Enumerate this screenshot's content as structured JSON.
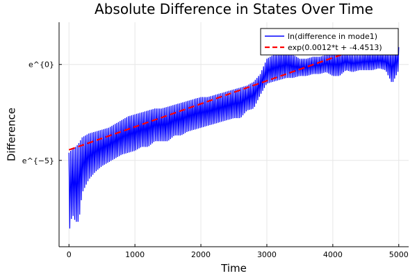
{
  "chart_data": {
    "type": "line",
    "title": "Absolute Difference in States Over Time",
    "xlabel": "Time",
    "ylabel": "Difference",
    "xlim": [
      -150,
      5150
    ],
    "ylim": [
      -9.5,
      2.2
    ],
    "xticks": [
      0,
      1000,
      2000,
      3000,
      4000,
      5000
    ],
    "xtick_labels": [
      "0",
      "1000",
      "2000",
      "3000",
      "4000",
      "5000"
    ],
    "yticks": [
      0,
      -5
    ],
    "ytick_labels": [
      "e^{0}",
      "e^{−5}"
    ],
    "grid": true,
    "legend_position": "top-right",
    "series": [
      {
        "name": "ln(difference in mode1)",
        "color": "#0000ff",
        "style": "solid",
        "envelope_upper": [
          [
            0,
            -4.6
          ],
          [
            50,
            -4.4
          ],
          [
            100,
            -4.3
          ],
          [
            150,
            -4.1
          ],
          [
            200,
            -3.8
          ],
          [
            300,
            -3.6
          ],
          [
            400,
            -3.5
          ],
          [
            500,
            -3.4
          ],
          [
            600,
            -3.3
          ],
          [
            700,
            -3.1
          ],
          [
            800,
            -2.9
          ],
          [
            900,
            -2.7
          ],
          [
            1000,
            -2.6
          ],
          [
            1100,
            -2.5
          ],
          [
            1200,
            -2.4
          ],
          [
            1300,
            -2.3
          ],
          [
            1400,
            -2.3
          ],
          [
            1500,
            -2.2
          ],
          [
            1600,
            -2.1
          ],
          [
            1700,
            -2.0
          ],
          [
            1800,
            -1.9
          ],
          [
            1900,
            -1.8
          ],
          [
            2000,
            -1.7
          ],
          [
            2100,
            -1.7
          ],
          [
            2200,
            -1.6
          ],
          [
            2300,
            -1.5
          ],
          [
            2400,
            -1.4
          ],
          [
            2500,
            -1.3
          ],
          [
            2600,
            -1.2
          ],
          [
            2700,
            -1.1
          ],
          [
            2800,
            -0.9
          ],
          [
            2900,
            -0.5
          ],
          [
            3000,
            0.3
          ],
          [
            3100,
            0.5
          ],
          [
            3200,
            0.6
          ],
          [
            3300,
            0.7
          ],
          [
            3400,
            0.5
          ],
          [
            3500,
            0.3
          ],
          [
            3600,
            0.3
          ],
          [
            3700,
            0.4
          ],
          [
            3800,
            0.4
          ],
          [
            3900,
            0.5
          ],
          [
            4000,
            0.6
          ],
          [
            4100,
            0.6
          ],
          [
            4200,
            0.6
          ],
          [
            4300,
            0.5
          ],
          [
            4400,
            0.5
          ],
          [
            4500,
            0.6
          ],
          [
            4600,
            0.6
          ],
          [
            4700,
            0.6
          ],
          [
            4800,
            0.6
          ],
          [
            4900,
            0.7
          ],
          [
            5000,
            0.9
          ]
        ],
        "envelope_lower": [
          [
            0,
            -8.8
          ],
          [
            50,
            -7.8
          ],
          [
            100,
            -8.2
          ],
          [
            150,
            -8.2
          ],
          [
            200,
            -6.7
          ],
          [
            300,
            -6.0
          ],
          [
            400,
            -5.6
          ],
          [
            500,
            -5.3
          ],
          [
            600,
            -5.1
          ],
          [
            700,
            -4.9
          ],
          [
            800,
            -4.7
          ],
          [
            900,
            -4.6
          ],
          [
            1000,
            -4.5
          ],
          [
            1100,
            -4.3
          ],
          [
            1200,
            -4.3
          ],
          [
            1300,
            -4.0
          ],
          [
            1400,
            -4.0
          ],
          [
            1500,
            -4.0
          ],
          [
            1600,
            -3.7
          ],
          [
            1700,
            -3.7
          ],
          [
            1800,
            -3.5
          ],
          [
            1900,
            -3.4
          ],
          [
            2000,
            -3.3
          ],
          [
            2100,
            -3.2
          ],
          [
            2200,
            -3.1
          ],
          [
            2300,
            -3.0
          ],
          [
            2400,
            -2.9
          ],
          [
            2500,
            -2.8
          ],
          [
            2600,
            -2.8
          ],
          [
            2700,
            -2.4
          ],
          [
            2800,
            -2.3
          ],
          [
            2900,
            -1.6
          ],
          [
            3000,
            -1.0
          ],
          [
            3100,
            -0.9
          ],
          [
            3200,
            -0.8
          ],
          [
            3300,
            -0.7
          ],
          [
            3400,
            -0.7
          ],
          [
            3500,
            -0.6
          ],
          [
            3600,
            -0.6
          ],
          [
            3700,
            -0.5
          ],
          [
            3800,
            -0.5
          ],
          [
            3900,
            -0.4
          ],
          [
            4000,
            -0.6
          ],
          [
            4100,
            -0.6
          ],
          [
            4200,
            -0.3
          ],
          [
            4300,
            -0.4
          ],
          [
            4400,
            -0.3
          ],
          [
            4500,
            -0.3
          ],
          [
            4600,
            -0.3
          ],
          [
            4700,
            -0.2
          ],
          [
            4800,
            -0.3
          ],
          [
            4900,
            -1.0
          ],
          [
            5000,
            -0.3
          ]
        ]
      },
      {
        "name": "exp(0.0012*t + -4.4513)",
        "color": "#ff0000",
        "style": "dashed",
        "slope": 0.0012,
        "intercept": -4.4513,
        "x_range": [
          0,
          5000
        ]
      }
    ]
  }
}
